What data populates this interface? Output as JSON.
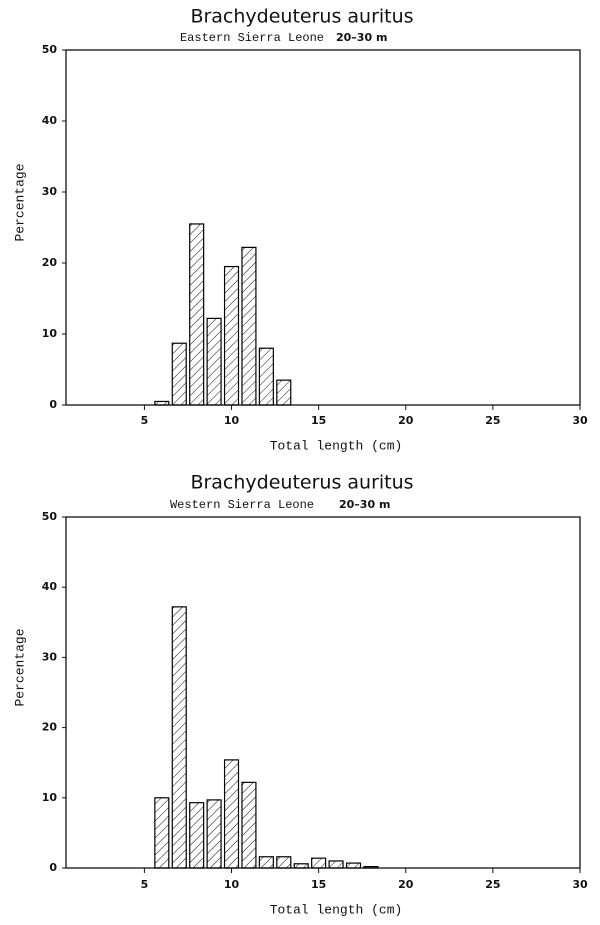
{
  "chart_data": [
    {
      "type": "bar",
      "title": "Brachydeuterus auritus",
      "subtitle": "Eastern Sierra Leone",
      "depth": "20–30 m",
      "x_label": "Total length (cm)",
      "y_label": "Percentage",
      "x": [
        6,
        7,
        8,
        9,
        10,
        11,
        12,
        13
      ],
      "values": [
        0.5,
        8.7,
        25.5,
        12.2,
        19.5,
        22.2,
        8.0,
        3.5
      ],
      "xlim": [
        0.5,
        30
      ],
      "xticks": [
        5,
        10,
        15,
        20,
        25,
        30
      ],
      "ylim": [
        0,
        50
      ],
      "yticks": [
        0,
        10,
        20,
        30,
        40,
        50
      ],
      "color": "#000000"
    },
    {
      "type": "bar",
      "title": "Brachydeuterus auritus",
      "subtitle": "Western Sierra Leone",
      "depth": "20–30 m",
      "x_label": "Total length (cm)",
      "y_label": "Percentage",
      "x": [
        6,
        7,
        8,
        9,
        10,
        11,
        12,
        13,
        14,
        15,
        16,
        17,
        18
      ],
      "values": [
        10.0,
        37.2,
        9.3,
        9.7,
        15.4,
        12.2,
        1.6,
        1.6,
        0.6,
        1.4,
        1.0,
        0.7,
        0.2
      ],
      "xlim": [
        0.5,
        30
      ],
      "xticks": [
        5,
        10,
        15,
        20,
        25,
        30
      ],
      "ylim": [
        0,
        50
      ],
      "yticks": [
        0,
        10,
        20,
        30,
        40,
        50
      ],
      "color": "#000000"
    }
  ]
}
